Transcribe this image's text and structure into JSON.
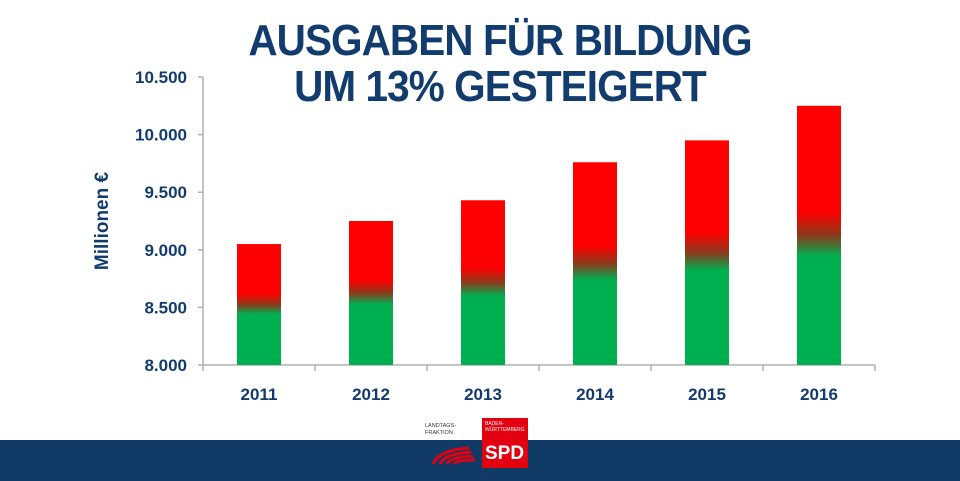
{
  "chart_data": {
    "type": "bar",
    "title": "AUSGABEN FÜR BILDUNG UM 13% GESTEIGERT",
    "title_lines": [
      "AUSGABEN FÜR BILDUNG",
      "UM 13% GESTEIGERT"
    ],
    "xlabel": "",
    "ylabel": "Millionen €",
    "categories": [
      "2011",
      "2012",
      "2013",
      "2014",
      "2015",
      "2016"
    ],
    "values": [
      9050,
      9250,
      9430,
      9760,
      9950,
      10250
    ],
    "ylim": [
      8000,
      10500
    ],
    "yticks": [
      8000,
      8500,
      9000,
      9500,
      10000,
      10500
    ],
    "ytick_labels": [
      "8.000",
      "8.500",
      "9.000",
      "9.500",
      "10.000",
      "10.500"
    ],
    "grid": false,
    "legend": "none",
    "colors": {
      "bar_bottom": "#00b050",
      "bar_top": "#ff0000",
      "text": "#123c6e",
      "axis": "#b0b0b0"
    }
  },
  "footer": {
    "color": "#0f3b66",
    "logo": {
      "left_text": "LANDTAGS-FRAKTION",
      "region": "BADEN-WÜRTTEMBERG",
      "party": "SPD",
      "color": "#e3000f"
    }
  }
}
